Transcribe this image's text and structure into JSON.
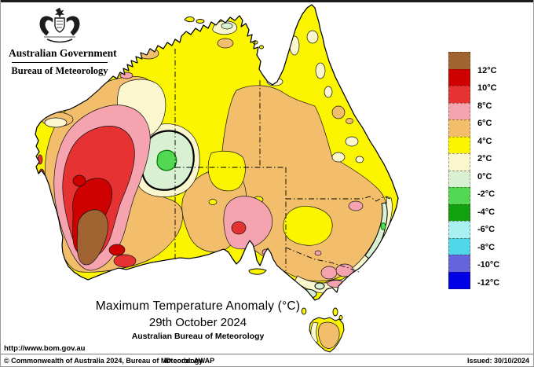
{
  "header": {
    "gov_label": "Australian Government",
    "bureau_label": "Bureau of Meteorology"
  },
  "title": {
    "line1": "Maximum Temperature Anomaly (°C)",
    "line2": "29th October 2024",
    "line3": "Australian Bureau of Meteorology"
  },
  "footer": {
    "url": "http://www.bom.gov.au",
    "copyright": "© Commonwealth of Australia 2024, Bureau of Meteorology",
    "id_code": "ID code: AWAP",
    "issued": "Issued: 30/10/2024"
  },
  "legend": {
    "position": "right",
    "labels": [
      "12°C",
      "10°C",
      "8°C",
      "6°C",
      "4°C",
      "2°C",
      "0°C",
      "-2°C",
      "-4°C",
      "-6°C",
      "-8°C",
      "-10°C",
      "-12°C"
    ],
    "colors": [
      "#A06432",
      "#CE0000",
      "#E63232",
      "#F5A3AF",
      "#F2BE6C",
      "#FCF500",
      "#FAF6CE",
      "#D9F0D2",
      "#52D852",
      "#10A010",
      "#AAF0F0",
      "#50D8E8",
      "#6464DC",
      "#0000E6"
    ]
  },
  "palette": {
    "sea": "#FFFFFF",
    "yellow": "#FCF500",
    "orange": "#F2BE6C",
    "cream": "#FAF6CE",
    "mint": "#D9F0D2",
    "green": "#52D852",
    "pink": "#F5A3AF",
    "red": "#E63232",
    "red_dark": "#CE0000",
    "brown": "#A06432",
    "contour": "#000000"
  },
  "map_info": {
    "region": "Australia",
    "variable": "Maximum Temperature Anomaly",
    "units": "°C",
    "hotspot": "Southwest Western Australia above +12°C",
    "coolspot": "Central Western Australia below 0°C"
  }
}
